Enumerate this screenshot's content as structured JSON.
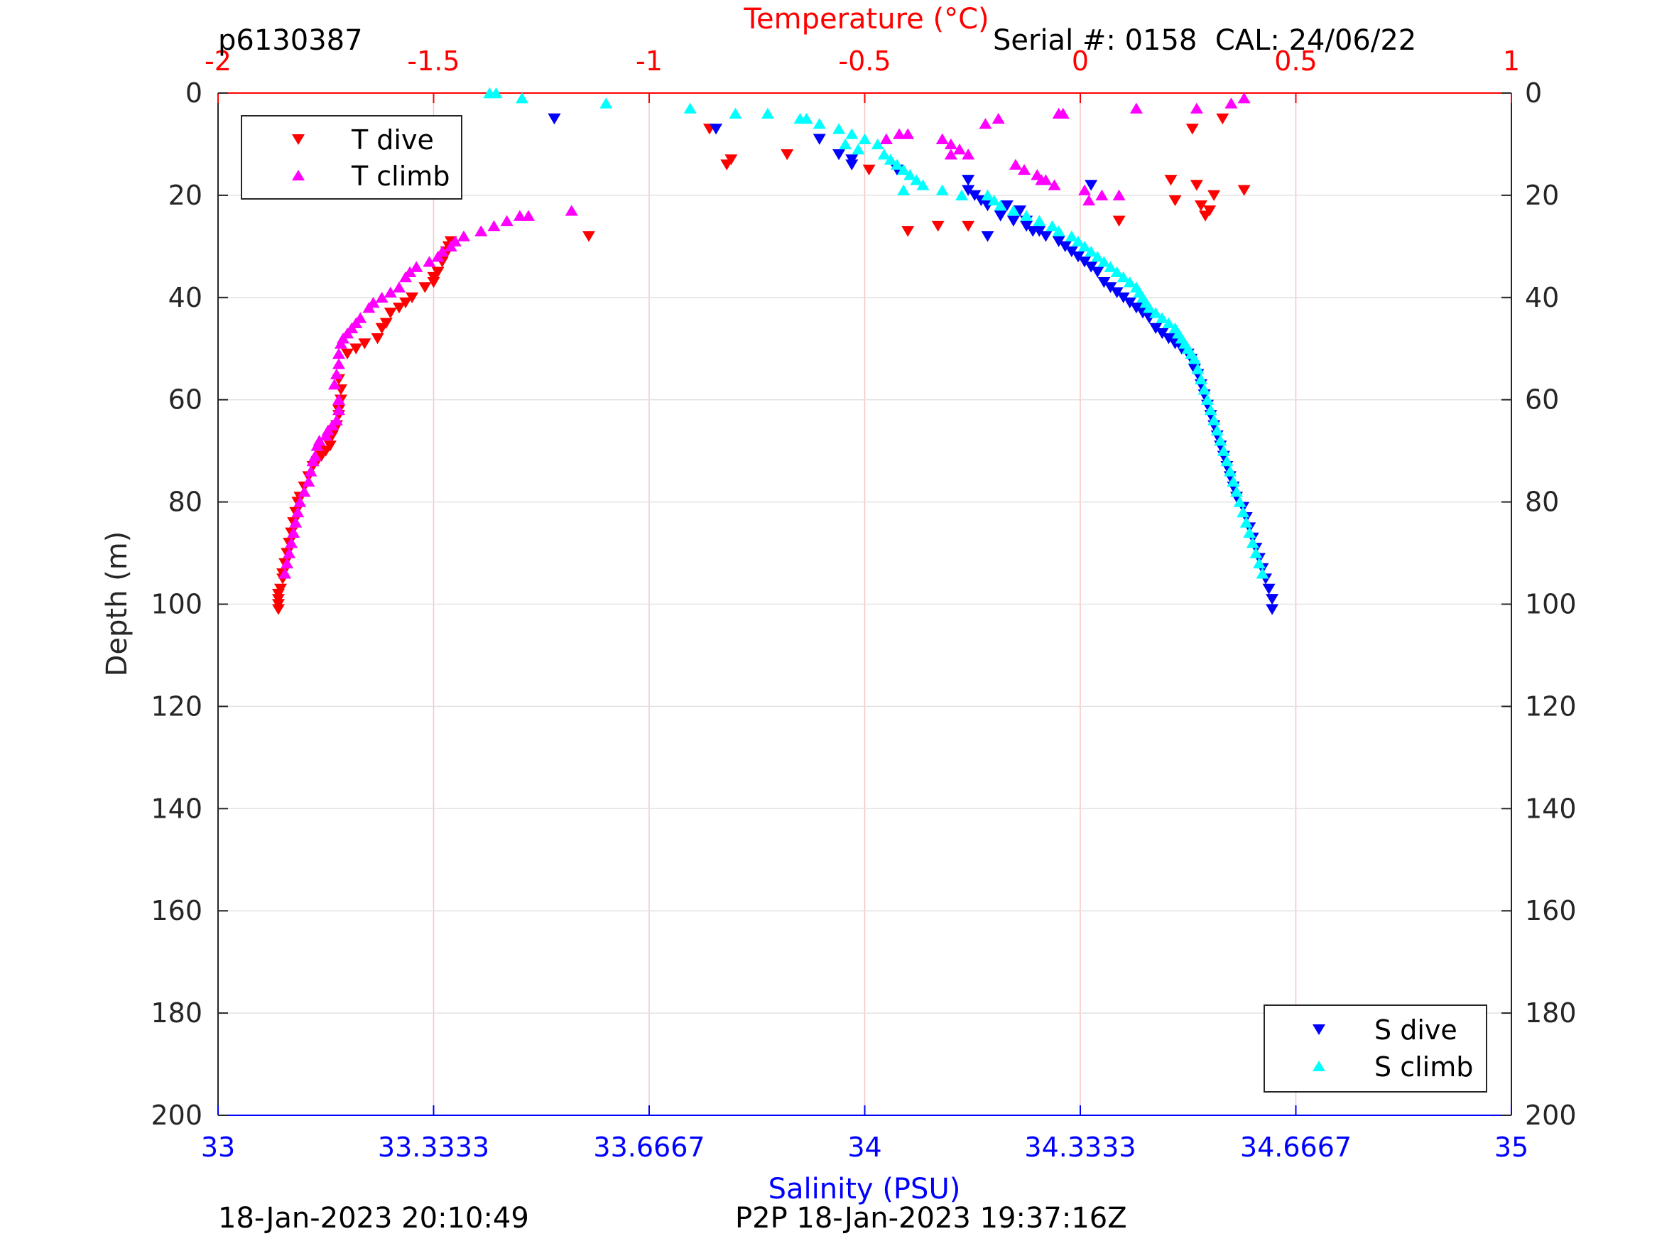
{
  "header": {
    "profile_id": "p6130387",
    "serial": "Serial #: 0158  CAL: 24/06/22"
  },
  "footer": {
    "timestamp": "18-Jan-2023 20:10:49",
    "p2p": "P2P 18-Jan-2023 19:37:16Z"
  },
  "colors": {
    "t_dive": "#ff0000",
    "t_climb": "#ff00ff",
    "s_dive": "#0000ff",
    "s_climb": "#00ffff",
    "temp_axis": "#ff0000",
    "sal_axis": "#0000ff"
  },
  "chart_data": {
    "type": "scatter",
    "ylabel": "Depth (m)",
    "ylim": [
      0,
      200
    ],
    "y_reversed": true,
    "yticks": [
      "0",
      "20",
      "40",
      "60",
      "80",
      "100",
      "120",
      "140",
      "160",
      "180",
      "200"
    ],
    "temperature_axis": {
      "label": "Temperature (°C)",
      "position": "top",
      "range": [
        -2,
        1
      ],
      "ticks": [
        "-2",
        "-1.5",
        "-1",
        "-0.5",
        "0",
        "0.5",
        "1"
      ]
    },
    "salinity_axis": {
      "label": "Salinity (PSU)",
      "position": "bottom",
      "range": [
        33,
        35
      ],
      "ticks": [
        "33",
        "33.3333",
        "33.6667",
        "34",
        "34.3333",
        "34.6667",
        "35"
      ]
    },
    "grid": true,
    "legends": [
      {
        "placement": "top-left",
        "entries": [
          "T dive",
          "T climb"
        ]
      },
      {
        "placement": "bottom-right",
        "entries": [
          "S dive",
          "S climb"
        ]
      }
    ],
    "series": [
      {
        "name": "T dive",
        "axis": "temperature",
        "marker": "triangle-down",
        "color": "#ff0000",
        "points": [
          [
            -1.86,
            101
          ],
          [
            -1.86,
            100
          ],
          [
            -1.86,
            99
          ],
          [
            -1.86,
            98
          ],
          [
            -1.855,
            97
          ],
          [
            -1.85,
            95
          ],
          [
            -1.85,
            94
          ],
          [
            -1.845,
            92
          ],
          [
            -1.84,
            90
          ],
          [
            -1.835,
            88
          ],
          [
            -1.83,
            86
          ],
          [
            -1.825,
            84
          ],
          [
            -1.82,
            82
          ],
          [
            -1.815,
            80
          ],
          [
            -1.81,
            79
          ],
          [
            -1.8,
            77
          ],
          [
            -1.79,
            75
          ],
          [
            -1.78,
            73
          ],
          [
            -1.77,
            72
          ],
          [
            -1.76,
            71
          ],
          [
            -1.75,
            70
          ],
          [
            -1.74,
            69
          ],
          [
            -1.735,
            67
          ],
          [
            -1.73,
            66
          ],
          [
            -1.725,
            65
          ],
          [
            -1.72,
            63
          ],
          [
            -1.72,
            62
          ],
          [
            -1.715,
            60
          ],
          [
            -1.715,
            58
          ],
          [
            -1.72,
            56
          ],
          [
            -1.7,
            51
          ],
          [
            -1.68,
            50
          ],
          [
            -1.66,
            49
          ],
          [
            -1.63,
            48
          ],
          [
            -1.62,
            46
          ],
          [
            -1.61,
            45
          ],
          [
            -1.6,
            43
          ],
          [
            -1.58,
            42
          ],
          [
            -1.565,
            41
          ],
          [
            -1.55,
            40
          ],
          [
            -1.52,
            38
          ],
          [
            -1.5,
            37
          ],
          [
            -1.5,
            36
          ],
          [
            -1.49,
            35
          ],
          [
            -1.48,
            33
          ],
          [
            -1.475,
            32
          ],
          [
            -1.47,
            31
          ],
          [
            -1.465,
            30
          ],
          [
            -1.46,
            29
          ],
          [
            -1.14,
            28
          ],
          [
            -1.22,
            5
          ],
          [
            -0.86,
            7
          ],
          [
            -0.82,
            14
          ],
          [
            -0.81,
            13
          ],
          [
            -0.68,
            12
          ],
          [
            -0.49,
            15
          ],
          [
            -0.4,
            27
          ],
          [
            -0.33,
            26
          ],
          [
            -0.26,
            26
          ],
          [
            0.09,
            25
          ],
          [
            0.21,
            17
          ],
          [
            0.22,
            21
          ],
          [
            0.27,
            18
          ],
          [
            0.28,
            22
          ],
          [
            0.29,
            24
          ],
          [
            0.3,
            23
          ],
          [
            0.31,
            20
          ],
          [
            0.38,
            19
          ],
          [
            0.26,
            7
          ],
          [
            0.33,
            5
          ]
        ]
      },
      {
        "name": "T climb",
        "axis": "temperature",
        "marker": "triangle-up",
        "color": "#ff00ff",
        "points": [
          [
            -1.845,
            94
          ],
          [
            -1.84,
            92
          ],
          [
            -1.835,
            90
          ],
          [
            -1.83,
            88
          ],
          [
            -1.825,
            86
          ],
          [
            -1.82,
            84
          ],
          [
            -1.815,
            82
          ],
          [
            -1.81,
            80
          ],
          [
            -1.8,
            78
          ],
          [
            -1.79,
            76
          ],
          [
            -1.785,
            74
          ],
          [
            -1.78,
            72
          ],
          [
            -1.775,
            71
          ],
          [
            -1.77,
            69
          ],
          [
            -1.765,
            68
          ],
          [
            -1.75,
            67
          ],
          [
            -1.745,
            66
          ],
          [
            -1.735,
            65
          ],
          [
            -1.725,
            64
          ],
          [
            -1.72,
            62
          ],
          [
            -1.72,
            60
          ],
          [
            -1.73,
            57
          ],
          [
            -1.725,
            55
          ],
          [
            -1.72,
            53
          ],
          [
            -1.72,
            51
          ],
          [
            -1.715,
            49
          ],
          [
            -1.71,
            48
          ],
          [
            -1.7,
            47
          ],
          [
            -1.69,
            46
          ],
          [
            -1.68,
            45
          ],
          [
            -1.67,
            44
          ],
          [
            -1.65,
            42
          ],
          [
            -1.64,
            41
          ],
          [
            -1.62,
            40
          ],
          [
            -1.6,
            39
          ],
          [
            -1.58,
            38
          ],
          [
            -1.565,
            36
          ],
          [
            -1.555,
            35
          ],
          [
            -1.54,
            34
          ],
          [
            -1.51,
            33
          ],
          [
            -1.49,
            32
          ],
          [
            -1.48,
            31
          ],
          [
            -1.46,
            30
          ],
          [
            -1.45,
            29
          ],
          [
            -1.43,
            28
          ],
          [
            -1.39,
            27
          ],
          [
            -1.36,
            26
          ],
          [
            -1.33,
            25
          ],
          [
            -1.3,
            24
          ],
          [
            -1.28,
            24
          ],
          [
            -1.18,
            23
          ],
          [
            -0.45,
            9
          ],
          [
            -0.42,
            8
          ],
          [
            -0.4,
            8
          ],
          [
            -0.32,
            9
          ],
          [
            -0.3,
            10
          ],
          [
            -0.3,
            12
          ],
          [
            -0.28,
            11
          ],
          [
            -0.26,
            12
          ],
          [
            -0.22,
            6
          ],
          [
            -0.19,
            5
          ],
          [
            -0.15,
            14
          ],
          [
            -0.13,
            15
          ],
          [
            -0.1,
            16
          ],
          [
            -0.09,
            17
          ],
          [
            -0.08,
            17
          ],
          [
            -0.06,
            18
          ],
          [
            -0.05,
            4
          ],
          [
            -0.04,
            4
          ],
          [
            0.01,
            19
          ],
          [
            0.02,
            21
          ],
          [
            0.05,
            20
          ],
          [
            0.09,
            20
          ],
          [
            0.13,
            3
          ],
          [
            0.27,
            3
          ],
          [
            0.35,
            2
          ],
          [
            0.38,
            1
          ]
        ]
      },
      {
        "name": "S dive",
        "axis": "salinity",
        "marker": "triangle-down",
        "color": "#0000ff",
        "points": [
          [
            34.63,
            101
          ],
          [
            34.63,
            99
          ],
          [
            34.625,
            97
          ],
          [
            34.62,
            95
          ],
          [
            34.615,
            93
          ],
          [
            34.61,
            91
          ],
          [
            34.605,
            89
          ],
          [
            34.6,
            87
          ],
          [
            34.595,
            85
          ],
          [
            34.59,
            83
          ],
          [
            34.585,
            81
          ],
          [
            34.575,
            79
          ],
          [
            34.57,
            77
          ],
          [
            34.565,
            75
          ],
          [
            34.56,
            73
          ],
          [
            34.555,
            71
          ],
          [
            34.55,
            69
          ],
          [
            34.545,
            67
          ],
          [
            34.54,
            65
          ],
          [
            34.535,
            63
          ],
          [
            34.53,
            61
          ],
          [
            34.525,
            59
          ],
          [
            34.52,
            57
          ],
          [
            34.515,
            55
          ],
          [
            34.51,
            54
          ],
          [
            34.505,
            52
          ],
          [
            34.5,
            51
          ],
          [
            34.49,
            50
          ],
          [
            34.48,
            49
          ],
          [
            34.47,
            48
          ],
          [
            34.46,
            47
          ],
          [
            34.45,
            46
          ],
          [
            34.44,
            44
          ],
          [
            34.43,
            43
          ],
          [
            34.42,
            42
          ],
          [
            34.41,
            41
          ],
          [
            34.4,
            40
          ],
          [
            34.39,
            39
          ],
          [
            34.38,
            38
          ],
          [
            34.37,
            37
          ],
          [
            34.36,
            35
          ],
          [
            34.35,
            34
          ],
          [
            34.34,
            33
          ],
          [
            34.33,
            32
          ],
          [
            34.32,
            31
          ],
          [
            34.31,
            30
          ],
          [
            34.3,
            29
          ],
          [
            34.28,
            28
          ],
          [
            34.26,
            27
          ],
          [
            34.25,
            26
          ],
          [
            34.23,
            25
          ],
          [
            34.21,
            24
          ],
          [
            34.19,
            22
          ],
          [
            34.18,
            21
          ],
          [
            34.17,
            20
          ],
          [
            34.16,
            19
          ],
          [
            34.27,
            27
          ],
          [
            34.25,
            25
          ],
          [
            34.22,
            22
          ],
          [
            34.24,
            23
          ],
          [
            34.16,
            17
          ],
          [
            34.19,
            28
          ],
          [
            34.05,
            15
          ],
          [
            34.35,
            18
          ],
          [
            33.52,
            5
          ],
          [
            33.77,
            7
          ],
          [
            33.93,
            9
          ],
          [
            33.96,
            12
          ],
          [
            33.98,
            13
          ],
          [
            33.98,
            14
          ]
        ]
      },
      {
        "name": "S climb",
        "axis": "salinity",
        "marker": "triangle-up",
        "color": "#00ffff",
        "points": [
          [
            34.615,
            94
          ],
          [
            34.61,
            92
          ],
          [
            34.605,
            90
          ],
          [
            34.6,
            88
          ],
          [
            34.595,
            86
          ],
          [
            34.59,
            84
          ],
          [
            34.585,
            82
          ],
          [
            34.58,
            80
          ],
          [
            34.575,
            78
          ],
          [
            34.57,
            76
          ],
          [
            34.565,
            74
          ],
          [
            34.56,
            72
          ],
          [
            34.555,
            70
          ],
          [
            34.55,
            68
          ],
          [
            34.545,
            66
          ],
          [
            34.54,
            64
          ],
          [
            34.535,
            62
          ],
          [
            34.53,
            60
          ],
          [
            34.525,
            58
          ],
          [
            34.52,
            56
          ],
          [
            34.515,
            54
          ],
          [
            34.51,
            52
          ],
          [
            34.505,
            51
          ],
          [
            34.5,
            50
          ],
          [
            34.495,
            49
          ],
          [
            34.49,
            48
          ],
          [
            34.485,
            47
          ],
          [
            34.48,
            46
          ],
          [
            34.47,
            45
          ],
          [
            34.46,
            44
          ],
          [
            34.45,
            43
          ],
          [
            34.44,
            42
          ],
          [
            34.435,
            41
          ],
          [
            34.43,
            40
          ],
          [
            34.425,
            39
          ],
          [
            34.42,
            38
          ],
          [
            34.41,
            37
          ],
          [
            34.4,
            36
          ],
          [
            34.39,
            35
          ],
          [
            34.38,
            34
          ],
          [
            34.37,
            33
          ],
          [
            34.36,
            32
          ],
          [
            34.35,
            31
          ],
          [
            34.34,
            30
          ],
          [
            34.33,
            29
          ],
          [
            34.32,
            28
          ],
          [
            34.3,
            27
          ],
          [
            34.29,
            26
          ],
          [
            34.27,
            25
          ],
          [
            34.25,
            24
          ],
          [
            34.23,
            23
          ],
          [
            34.21,
            22
          ],
          [
            34.2,
            21
          ],
          [
            34.19,
            20
          ],
          [
            34.12,
            19
          ],
          [
            34.09,
            18
          ],
          [
            34.08,
            17
          ],
          [
            34.07,
            16
          ],
          [
            34.06,
            15
          ],
          [
            34.05,
            14
          ],
          [
            34.04,
            13
          ],
          [
            34.03,
            12
          ],
          [
            33.42,
            0
          ],
          [
            33.43,
            0
          ],
          [
            33.47,
            1
          ],
          [
            33.6,
            2
          ],
          [
            33.73,
            3
          ],
          [
            33.8,
            4
          ],
          [
            33.85,
            4
          ],
          [
            33.9,
            5
          ],
          [
            33.91,
            5
          ],
          [
            33.93,
            6
          ],
          [
            33.96,
            7
          ],
          [
            33.98,
            8
          ],
          [
            34.0,
            9
          ],
          [
            34.02,
            10
          ],
          [
            33.99,
            11
          ],
          [
            33.97,
            10
          ],
          [
            34.06,
            19
          ],
          [
            34.15,
            20
          ]
        ]
      }
    ]
  }
}
